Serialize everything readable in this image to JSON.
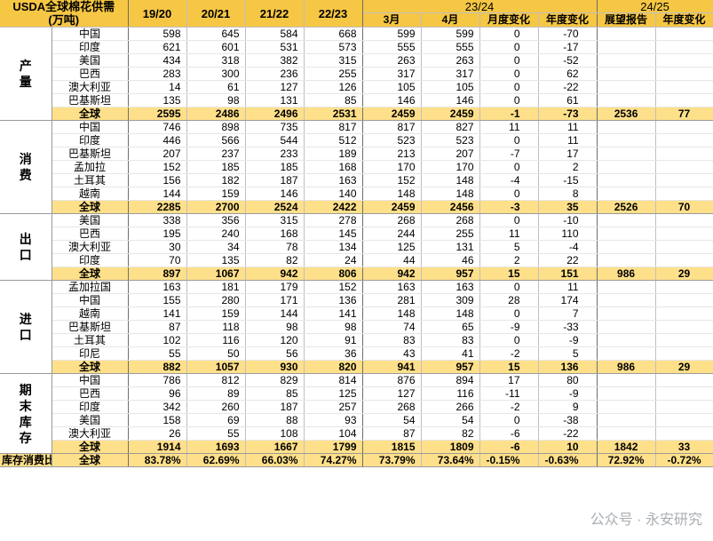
{
  "header": {
    "title_line1": "USDA全球棉花供需",
    "title_line2": "(万吨)",
    "years": [
      "19/20",
      "20/21",
      "21/22",
      "22/23"
    ],
    "year_2324": "23/24",
    "sub_2324": [
      "3月",
      "4月",
      "月度变化",
      "年度变化"
    ],
    "year_2425": "24/25",
    "sub_2425": [
      "展望报告",
      "年度变化"
    ]
  },
  "sections": [
    {
      "name": "产量",
      "rows": [
        {
          "country": "中国",
          "v": [
            "598",
            "645",
            "584",
            "668",
            "599",
            "599",
            "0",
            "-70"
          ]
        },
        {
          "country": "印度",
          "v": [
            "621",
            "601",
            "531",
            "573",
            "555",
            "555",
            "0",
            "-17"
          ]
        },
        {
          "country": "美国",
          "v": [
            "434",
            "318",
            "382",
            "315",
            "263",
            "263",
            "0",
            "-52"
          ]
        },
        {
          "country": "巴西",
          "v": [
            "283",
            "300",
            "236",
            "255",
            "317",
            "317",
            "0",
            "62"
          ]
        },
        {
          "country": "澳大利亚",
          "v": [
            "14",
            "61",
            "127",
            "126",
            "105",
            "105",
            "0",
            "-22"
          ]
        },
        {
          "country": "巴基斯坦",
          "v": [
            "135",
            "98",
            "131",
            "85",
            "146",
            "146",
            "0",
            "61"
          ]
        }
      ],
      "total": {
        "country": "全球",
        "v": [
          "2595",
          "2486",
          "2496",
          "2531",
          "2459",
          "2459",
          "-1",
          "-73",
          "2536",
          "77"
        ]
      }
    },
    {
      "name": "消费",
      "rows": [
        {
          "country": "中国",
          "v": [
            "746",
            "898",
            "735",
            "817",
            "817",
            "827",
            "11",
            "11"
          ]
        },
        {
          "country": "印度",
          "v": [
            "446",
            "566",
            "544",
            "512",
            "523",
            "523",
            "0",
            "11"
          ]
        },
        {
          "country": "巴基斯坦",
          "v": [
            "207",
            "237",
            "233",
            "189",
            "213",
            "207",
            "-7",
            "17"
          ]
        },
        {
          "country": "孟加拉",
          "v": [
            "152",
            "185",
            "185",
            "168",
            "170",
            "170",
            "0",
            "2"
          ]
        },
        {
          "country": "土耳其",
          "v": [
            "156",
            "182",
            "187",
            "163",
            "152",
            "148",
            "-4",
            "-15"
          ]
        },
        {
          "country": "越南",
          "v": [
            "144",
            "159",
            "146",
            "140",
            "148",
            "148",
            "0",
            "8"
          ]
        }
      ],
      "total": {
        "country": "全球",
        "v": [
          "2285",
          "2700",
          "2524",
          "2422",
          "2459",
          "2456",
          "-3",
          "35",
          "2526",
          "70"
        ]
      }
    },
    {
      "name": "出口",
      "rows": [
        {
          "country": "美国",
          "v": [
            "338",
            "356",
            "315",
            "278",
            "268",
            "268",
            "0",
            "-10"
          ]
        },
        {
          "country": "巴西",
          "v": [
            "195",
            "240",
            "168",
            "145",
            "244",
            "255",
            "11",
            "110"
          ]
        },
        {
          "country": "澳大利亚",
          "v": [
            "30",
            "34",
            "78",
            "134",
            "125",
            "131",
            "5",
            "-4"
          ]
        },
        {
          "country": "印度",
          "v": [
            "70",
            "135",
            "82",
            "24",
            "44",
            "46",
            "2",
            "22"
          ]
        }
      ],
      "total": {
        "country": "全球",
        "v": [
          "897",
          "1067",
          "942",
          "806",
          "942",
          "957",
          "15",
          "151",
          "986",
          "29"
        ]
      }
    },
    {
      "name": "进口",
      "rows": [
        {
          "country": "孟加拉国",
          "v": [
            "163",
            "181",
            "179",
            "152",
            "163",
            "163",
            "0",
            "11"
          ]
        },
        {
          "country": "中国",
          "v": [
            "155",
            "280",
            "171",
            "136",
            "281",
            "309",
            "28",
            "174"
          ]
        },
        {
          "country": "越南",
          "v": [
            "141",
            "159",
            "144",
            "141",
            "148",
            "148",
            "0",
            "7"
          ]
        },
        {
          "country": "巴基斯坦",
          "v": [
            "87",
            "118",
            "98",
            "98",
            "74",
            "65",
            "-9",
            "-33"
          ]
        },
        {
          "country": "土耳其",
          "v": [
            "102",
            "116",
            "120",
            "91",
            "83",
            "83",
            "0",
            "-9"
          ]
        },
        {
          "country": "印尼",
          "v": [
            "55",
            "50",
            "56",
            "36",
            "43",
            "41",
            "-2",
            "5"
          ]
        }
      ],
      "total": {
        "country": "全球",
        "v": [
          "882",
          "1057",
          "930",
          "820",
          "941",
          "957",
          "15",
          "136",
          "986",
          "29"
        ]
      }
    },
    {
      "name": "期末库存",
      "rows": [
        {
          "country": "中国",
          "v": [
            "786",
            "812",
            "829",
            "814",
            "876",
            "894",
            "17",
            "80"
          ]
        },
        {
          "country": "巴西",
          "v": [
            "96",
            "89",
            "85",
            "125",
            "127",
            "116",
            "-11",
            "-9"
          ]
        },
        {
          "country": "印度",
          "v": [
            "342",
            "260",
            "187",
            "257",
            "268",
            "266",
            "-2",
            "9"
          ]
        },
        {
          "country": "美国",
          "v": [
            "158",
            "69",
            "88",
            "93",
            "54",
            "54",
            "0",
            "-38"
          ]
        },
        {
          "country": "澳大利亚",
          "v": [
            "26",
            "55",
            "108",
            "104",
            "87",
            "82",
            "-6",
            "-22"
          ]
        }
      ],
      "total": {
        "country": "全球",
        "v": [
          "1914",
          "1693",
          "1667",
          "1799",
          "1815",
          "1809",
          "-6",
          "10",
          "1842",
          "33"
        ]
      }
    }
  ],
  "ratio_row": {
    "label": "库存消费比",
    "country": "全球",
    "v": [
      "83.78%",
      "62.69%",
      "66.03%",
      "74.27%",
      "73.79%",
      "73.64%",
      "-0.15%",
      "-0.63%",
      "72.92%",
      "-0.72%"
    ]
  },
  "watermark": "公众号 · 永安研究"
}
